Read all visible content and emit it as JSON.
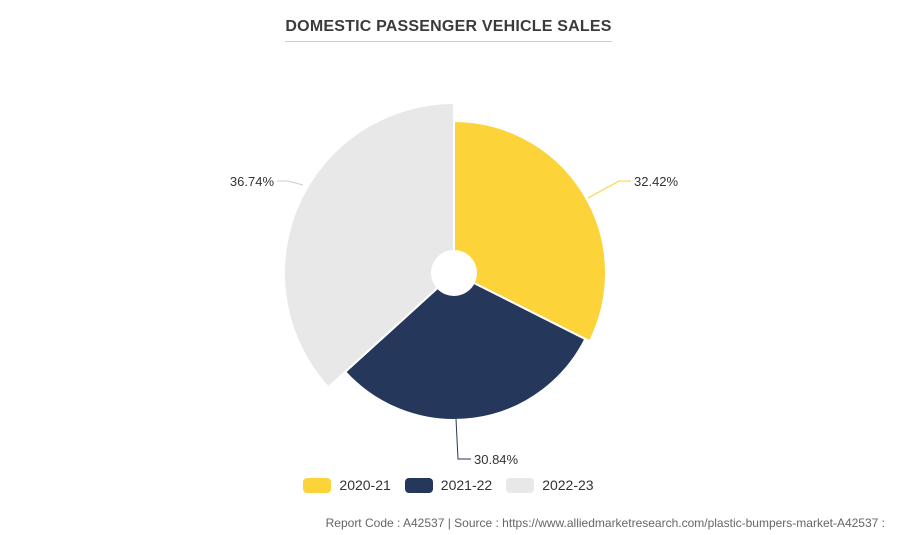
{
  "chart_data": {
    "type": "pie",
    "title": "DOMESTIC PASSENGER VEHICLE SALES",
    "categories": [
      "2020-21",
      "2021-22",
      "2022-23"
    ],
    "values": [
      32.42,
      30.84,
      36.74
    ],
    "labels": [
      "32.42%",
      "30.84%",
      "36.74%"
    ],
    "colors": [
      "#FDD33A",
      "#25375A",
      "#E8E8E8"
    ],
    "legend": "bottom"
  },
  "footer": {
    "text": "Report Code : A42537  |  Source : https://www.alliedmarketresearch.com/plastic-bumpers-market-A42537 :"
  }
}
